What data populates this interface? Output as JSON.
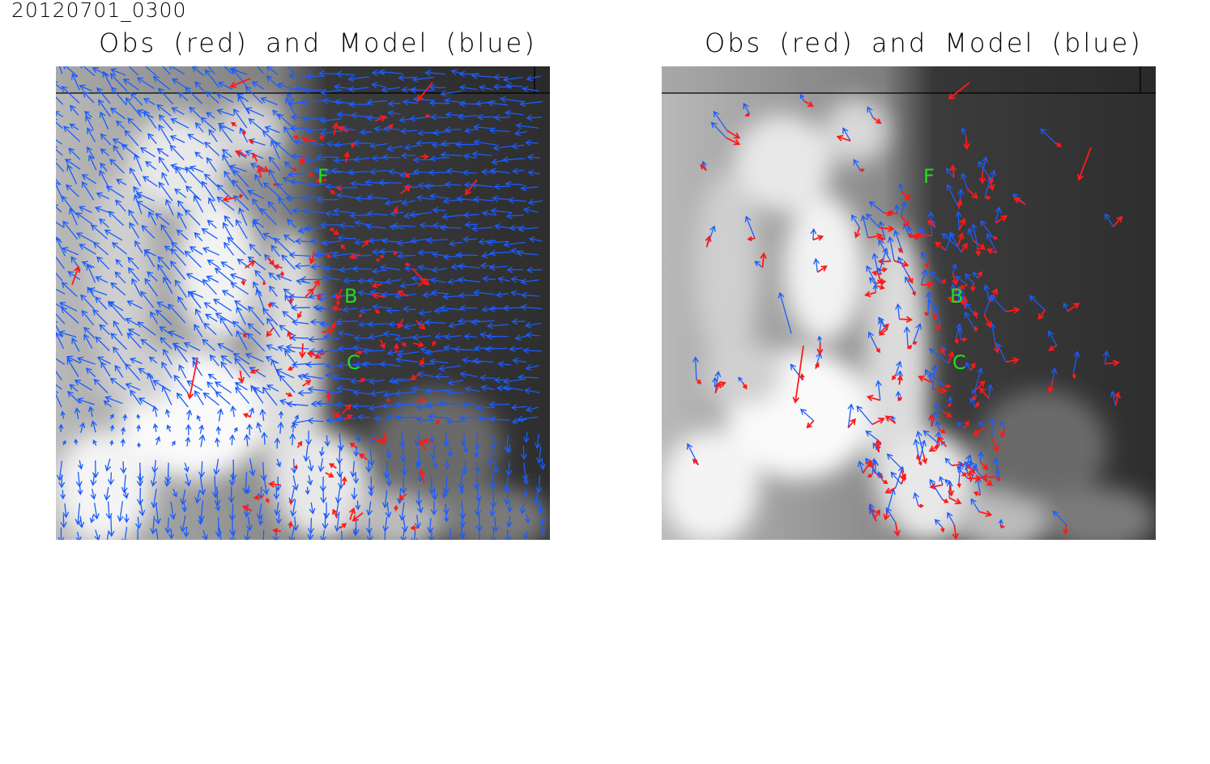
{
  "timestamp": "20120701_0300",
  "colors": {
    "obs": "#ff1a1a",
    "model": "#1a5cff",
    "label": "#22dd22"
  },
  "panels": [
    {
      "title": "Obs (red) and Model (blue)",
      "model_field": "dense-grid",
      "labels": [
        {
          "text": "F"
        },
        {
          "text": "B"
        },
        {
          "text": "C"
        }
      ]
    },
    {
      "title": "Obs (red) and Model (blue)",
      "model_field": "station-points",
      "labels": [
        {
          "text": "F"
        },
        {
          "text": "B"
        },
        {
          "text": "C"
        }
      ]
    }
  ],
  "icons": {
    "vector": "arrow-icon"
  }
}
